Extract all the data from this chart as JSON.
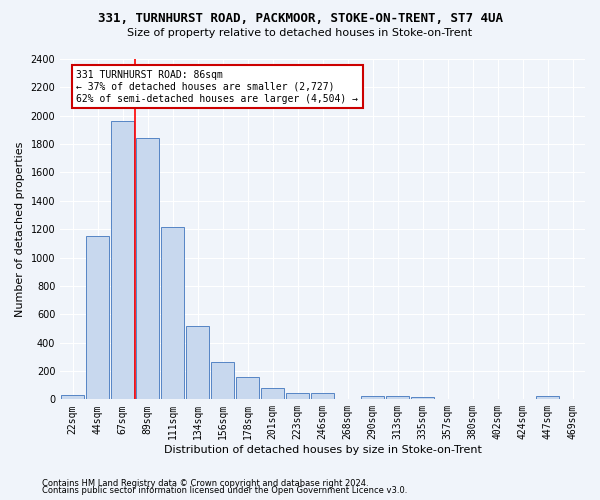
{
  "title1": "331, TURNHURST ROAD, PACKMOOR, STOKE-ON-TRENT, ST7 4UA",
  "title2": "Size of property relative to detached houses in Stoke-on-Trent",
  "xlabel": "Distribution of detached houses by size in Stoke-on-Trent",
  "ylabel": "Number of detached properties",
  "footnote1": "Contains HM Land Registry data © Crown copyright and database right 2024.",
  "footnote2": "Contains public sector information licensed under the Open Government Licence v3.0.",
  "categories": [
    "22sqm",
    "44sqm",
    "67sqm",
    "89sqm",
    "111sqm",
    "134sqm",
    "156sqm",
    "178sqm",
    "201sqm",
    "223sqm",
    "246sqm",
    "268sqm",
    "290sqm",
    "313sqm",
    "335sqm",
    "357sqm",
    "380sqm",
    "402sqm",
    "424sqm",
    "447sqm",
    "469sqm"
  ],
  "values": [
    30,
    1150,
    1960,
    1840,
    1215,
    515,
    265,
    155,
    80,
    48,
    42,
    0,
    25,
    20,
    14,
    0,
    0,
    0,
    0,
    20,
    0
  ],
  "bar_color": "#c8d8ee",
  "bar_edge_color": "#5585c5",
  "ylim": [
    0,
    2400
  ],
  "yticks": [
    0,
    200,
    400,
    600,
    800,
    1000,
    1200,
    1400,
    1600,
    1800,
    2000,
    2200,
    2400
  ],
  "vline_label": "331 TURNHURST ROAD: 86sqm",
  "annotation_line1": "← 37% of detached houses are smaller (2,727)",
  "annotation_line2": "62% of semi-detached houses are larger (4,504) →",
  "annotation_box_color": "#ffffff",
  "annotation_box_edge": "#cc0000",
  "bg_color": "#f0f4fa",
  "grid_color": "#ffffff",
  "title1_fontsize": 9,
  "title2_fontsize": 8,
  "ylabel_fontsize": 8,
  "xlabel_fontsize": 8,
  "tick_fontsize": 7,
  "annot_fontsize": 7,
  "footnote_fontsize": 6
}
